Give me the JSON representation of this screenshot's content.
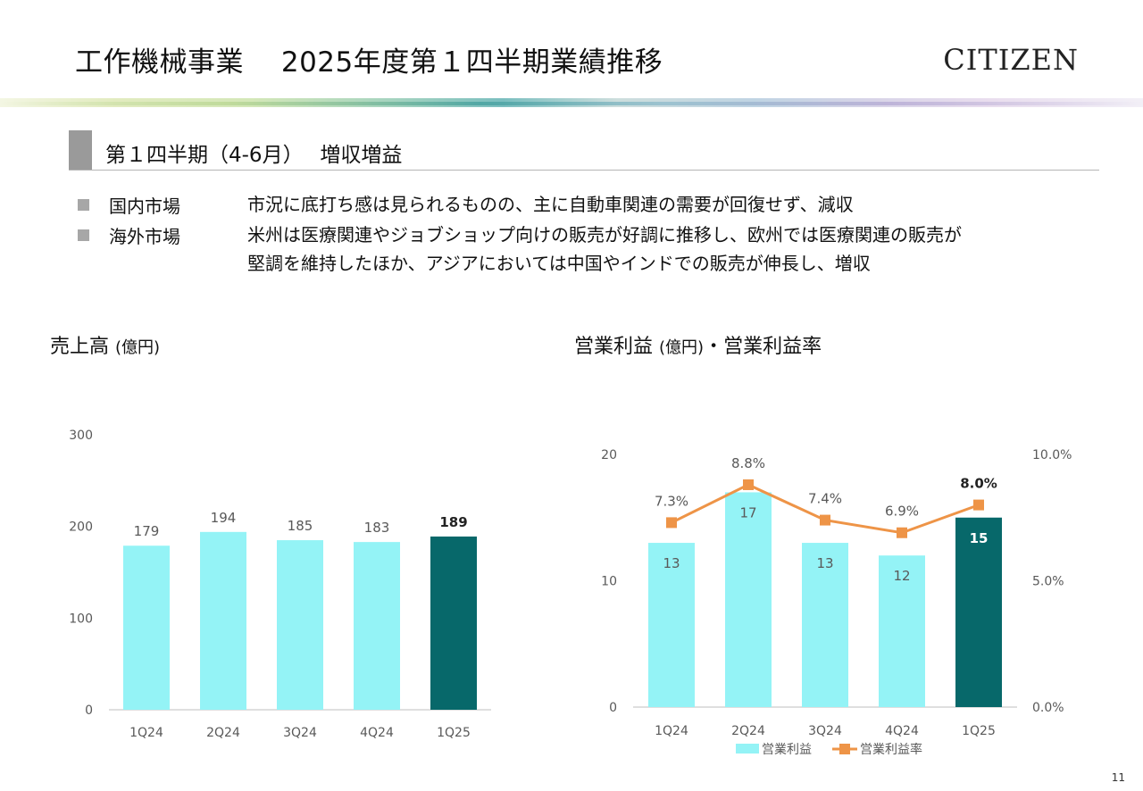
{
  "header": {
    "title": "工作機械事業　 2025年度第１四半期業績推移",
    "logo": "CITIZEN"
  },
  "section": {
    "heading": "第１四半期（4-6月）　 増収増益"
  },
  "points": [
    {
      "label": "国内市場",
      "lines": [
        "市況に底打ち感は見られるものの、主に自動車関連の需要が回復せず、減収"
      ]
    },
    {
      "label": "海外市場",
      "lines": [
        "米州は医療関連やジョブショップ向けの販売が好調に推移し、欧州では医療関連の販売が",
        "堅調を維持したほか、アジアにおいては中国やインドでの販売が伸長し、増収"
      ]
    }
  ],
  "sales_title": {
    "main": "売上高",
    "unit": "(億円)"
  },
  "profit_title": {
    "main": "営業利益",
    "unit": "(億円)",
    "rest": "・営業利益率"
  },
  "colors": {
    "light": "#94f3f6",
    "dark": "#07686a",
    "line": "#ee9447",
    "axis": "#bfbfbf",
    "text": "#595959"
  },
  "chart_data": [
    {
      "type": "bar",
      "title": "売上高 (億円)",
      "categories": [
        "1Q24",
        "2Q24",
        "3Q24",
        "4Q24",
        "1Q25"
      ],
      "values": [
        179,
        194,
        185,
        183,
        189
      ],
      "value_labels": [
        "179",
        "194",
        "185",
        "183",
        "189"
      ],
      "highlight_index": 4,
      "ylim": [
        0,
        300
      ],
      "yticks": [
        "0",
        "100",
        "200",
        "300"
      ],
      "ytick_values": [
        0,
        100,
        200,
        300
      ],
      "grid": false
    },
    {
      "type": "bar+line",
      "title": "営業利益 (億円)・営業利益率",
      "categories": [
        "1Q24",
        "2Q24",
        "3Q24",
        "4Q24",
        "1Q25"
      ],
      "series": [
        {
          "name": "営業利益",
          "type": "bar",
          "values": [
            13,
            17,
            13,
            12,
            15
          ],
          "value_labels": [
            "13",
            "17",
            "13",
            "12",
            "15"
          ],
          "axis": "left"
        },
        {
          "name": "営業利益率",
          "type": "line",
          "values": [
            7.3,
            8.8,
            7.4,
            6.9,
            8.0
          ],
          "value_labels": [
            "7.3%",
            "8.8%",
            "7.4%",
            "6.9%",
            "8.0%"
          ],
          "axis": "right"
        }
      ],
      "highlight_index": 4,
      "ylim": [
        0,
        20
      ],
      "yticks": [
        "0",
        "10",
        "20"
      ],
      "ytick_values": [
        0,
        10,
        20
      ],
      "y2lim": [
        0,
        10
      ],
      "y2ticks": [
        "0.0%",
        "5.0%",
        "10.0%"
      ],
      "y2tick_values": [
        0,
        5,
        10
      ],
      "legend": "bottom",
      "grid": false
    }
  ],
  "page_number": "11"
}
